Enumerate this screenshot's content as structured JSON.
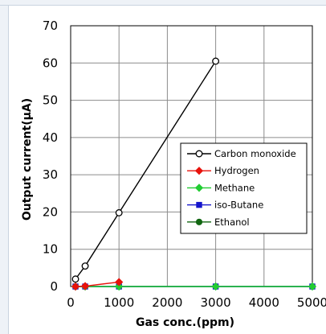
{
  "chart_data": {
    "type": "line",
    "title": "",
    "xlabel": "Gas conc.(ppm)",
    "ylabel": "Output current(μA)",
    "xlim": [
      0,
      5000
    ],
    "ylim": [
      0,
      70
    ],
    "x_ticks": [
      0,
      1000,
      2000,
      3000,
      4000,
      5000
    ],
    "y_ticks": [
      0,
      10,
      20,
      30,
      40,
      50,
      60,
      70
    ],
    "x_tick_labels": [
      "0",
      "1000",
      "2000",
      "3000",
      "4000",
      "5000"
    ],
    "y_tick_labels": [
      "0",
      "10",
      "20",
      "30",
      "40",
      "50",
      "60",
      "70"
    ],
    "grid": true,
    "legend_position": "right-middle",
    "series": [
      {
        "name": "Carbon monoxide",
        "color": "#000000",
        "marker": "open-circle",
        "x": [
          100,
          300,
          1000,
          3000
        ],
        "y": [
          2,
          5.5,
          19.8,
          60.5
        ]
      },
      {
        "name": "Hydrogen",
        "color": "#e8120c",
        "marker": "diamond",
        "x": [
          100,
          300,
          1000
        ],
        "y": [
          0,
          0.1,
          1.2
        ]
      },
      {
        "name": "Methane",
        "color": "#22cc33",
        "marker": "diamond",
        "x": [
          100,
          300,
          1000,
          3000,
          5000
        ],
        "y": [
          0,
          0,
          0,
          0,
          0
        ]
      },
      {
        "name": "iso-Butane",
        "color": "#1414cc",
        "marker": "square",
        "x": [
          100,
          300,
          1000,
          3000,
          5000
        ],
        "y": [
          0,
          0,
          0,
          0,
          0
        ]
      },
      {
        "name": "Ethanol",
        "color": "#116611",
        "marker": "circle",
        "x": [
          100,
          300,
          1000,
          3000,
          5000
        ],
        "y": [
          0,
          0,
          0,
          0,
          0
        ]
      }
    ]
  }
}
